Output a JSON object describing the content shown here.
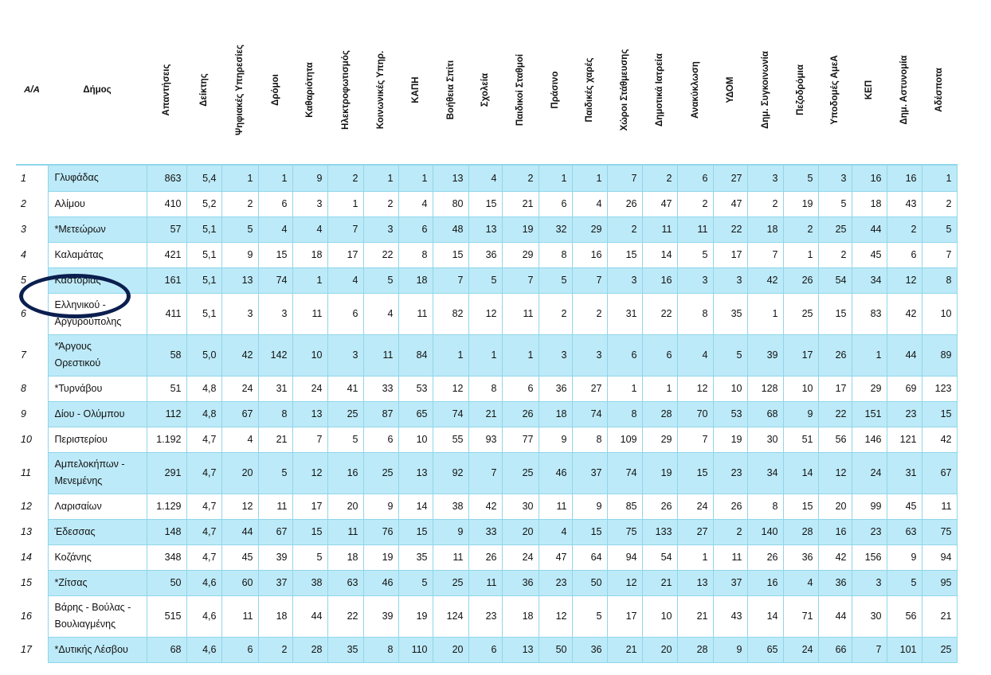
{
  "columns": [
    "Α/Α",
    "Δήμος",
    "Απαντήσεις",
    "Δείκτης",
    "Ψηφιακές Υπηρεσίες",
    "Δρόμοι",
    "Καθαριότητα",
    "Ηλεκτροφωτισμός",
    "Κοινωνικές Υπηρ.",
    "ΚΑΠΗ",
    "Βοήθεια Σπίτι",
    "Σχολεία",
    "Παιδικοί Σταθμοί",
    "Πράσινο",
    "Παιδικές χαρές",
    "Χώροι Στάθμευσης",
    "Δημοτικά Ιατρεία",
    "Ανακύκλωση",
    "ΥΔΟΜ",
    "Δημ. Συγκοινωνία",
    "Πεζοδρόμια",
    "Υποδομές ΑμεΑ",
    "ΚΕΠ",
    "Δημ. Αστυνομία",
    "Αδέσποτα"
  ],
  "rows": [
    {
      "aa": "1",
      "muni": [
        "Γλυφάδας"
      ],
      "vals": [
        "863",
        "5,4",
        "1",
        "1",
        "9",
        "2",
        "1",
        "1",
        "13",
        "4",
        "2",
        "1",
        "1",
        "7",
        "2",
        "6",
        "27",
        "3",
        "5",
        "3",
        "16",
        "16",
        "1"
      ]
    },
    {
      "aa": "2",
      "muni": [
        "Αλίμου"
      ],
      "vals": [
        "410",
        "5,2",
        "2",
        "6",
        "3",
        "1",
        "2",
        "4",
        "80",
        "15",
        "21",
        "6",
        "4",
        "26",
        "47",
        "2",
        "47",
        "2",
        "19",
        "5",
        "18",
        "43",
        "2"
      ]
    },
    {
      "aa": "3",
      "muni": [
        "*Μετεώρων"
      ],
      "vals": [
        "57",
        "5,1",
        "5",
        "4",
        "4",
        "7",
        "3",
        "6",
        "48",
        "13",
        "19",
        "32",
        "29",
        "2",
        "11",
        "11",
        "22",
        "18",
        "2",
        "25",
        "44",
        "2",
        "5"
      ]
    },
    {
      "aa": "4",
      "muni": [
        "Καλαμάτας"
      ],
      "vals": [
        "421",
        "5,1",
        "9",
        "15",
        "18",
        "17",
        "22",
        "8",
        "15",
        "36",
        "29",
        "8",
        "16",
        "15",
        "14",
        "5",
        "17",
        "7",
        "1",
        "2",
        "45",
        "6",
        "7"
      ]
    },
    {
      "aa": "5",
      "muni": [
        "Καστοριάς"
      ],
      "vals": [
        "161",
        "5,1",
        "13",
        "74",
        "1",
        "4",
        "5",
        "18",
        "7",
        "5",
        "7",
        "5",
        "7",
        "3",
        "16",
        "3",
        "3",
        "42",
        "26",
        "54",
        "34",
        "12",
        "8"
      ]
    },
    {
      "aa": "6",
      "muni": [
        "Ελληνικού -",
        "Αργυρούπολης"
      ],
      "vals": [
        "411",
        "5,1",
        "3",
        "3",
        "11",
        "6",
        "4",
        "11",
        "82",
        "12",
        "11",
        "2",
        "2",
        "31",
        "22",
        "8",
        "35",
        "1",
        "25",
        "15",
        "83",
        "42",
        "10"
      ]
    },
    {
      "aa": "7",
      "muni": [
        "*Άργους",
        "Ορεστικού"
      ],
      "vals": [
        "58",
        "5,0",
        "42",
        "142",
        "10",
        "3",
        "11",
        "84",
        "1",
        "1",
        "1",
        "3",
        "3",
        "6",
        "6",
        "4",
        "5",
        "39",
        "17",
        "26",
        "1",
        "44",
        "89"
      ]
    },
    {
      "aa": "8",
      "muni": [
        "*Τυρνάβου"
      ],
      "vals": [
        "51",
        "4,8",
        "24",
        "31",
        "24",
        "41",
        "33",
        "53",
        "12",
        "8",
        "6",
        "36",
        "27",
        "1",
        "1",
        "12",
        "10",
        "128",
        "10",
        "17",
        "29",
        "69",
        "123"
      ]
    },
    {
      "aa": "9",
      "muni": [
        "Δίου - Ολύμπου"
      ],
      "vals": [
        "112",
        "4,8",
        "67",
        "8",
        "13",
        "25",
        "87",
        "65",
        "74",
        "21",
        "26",
        "18",
        "74",
        "8",
        "28",
        "70",
        "53",
        "68",
        "9",
        "22",
        "151",
        "23",
        "15"
      ]
    },
    {
      "aa": "10",
      "muni": [
        "Περιστερίου"
      ],
      "vals": [
        "1.192",
        "4,7",
        "4",
        "21",
        "7",
        "5",
        "6",
        "10",
        "55",
        "93",
        "77",
        "9",
        "8",
        "109",
        "29",
        "7",
        "19",
        "30",
        "51",
        "56",
        "146",
        "121",
        "42"
      ]
    },
    {
      "aa": "11",
      "muni": [
        "Αμπελοκήπων -",
        "Μενεμένης"
      ],
      "vals": [
        "291",
        "4,7",
        "20",
        "5",
        "12",
        "16",
        "25",
        "13",
        "92",
        "7",
        "25",
        "46",
        "37",
        "74",
        "19",
        "15",
        "23",
        "34",
        "14",
        "12",
        "24",
        "31",
        "67"
      ]
    },
    {
      "aa": "12",
      "muni": [
        "Λαρισαίων"
      ],
      "vals": [
        "1.129",
        "4,7",
        "12",
        "11",
        "17",
        "20",
        "9",
        "14",
        "38",
        "42",
        "30",
        "11",
        "9",
        "85",
        "26",
        "24",
        "26",
        "8",
        "15",
        "20",
        "99",
        "45",
        "11"
      ]
    },
    {
      "aa": "13",
      "muni": [
        "Έδεσσας"
      ],
      "vals": [
        "148",
        "4,7",
        "44",
        "67",
        "15",
        "11",
        "76",
        "15",
        "9",
        "33",
        "20",
        "4",
        "15",
        "75",
        "133",
        "27",
        "2",
        "140",
        "28",
        "16",
        "23",
        "63",
        "75"
      ]
    },
    {
      "aa": "14",
      "muni": [
        "Κοζάνης"
      ],
      "vals": [
        "348",
        "4,7",
        "45",
        "39",
        "5",
        "18",
        "19",
        "35",
        "11",
        "26",
        "24",
        "47",
        "64",
        "94",
        "54",
        "1",
        "11",
        "26",
        "36",
        "42",
        "156",
        "9",
        "94"
      ]
    },
    {
      "aa": "15",
      "muni": [
        "*Ζίτσας"
      ],
      "vals": [
        "50",
        "4,6",
        "60",
        "37",
        "38",
        "63",
        "46",
        "5",
        "25",
        "11",
        "36",
        "23",
        "50",
        "12",
        "21",
        "13",
        "37",
        "16",
        "4",
        "36",
        "3",
        "5",
        "95"
      ]
    },
    {
      "aa": "16",
      "muni": [
        "Βάρης - Βούλας -",
        "Βουλιαγμένης"
      ],
      "vals": [
        "515",
        "4,6",
        "11",
        "18",
        "44",
        "22",
        "39",
        "19",
        "124",
        "23",
        "18",
        "12",
        "5",
        "17",
        "10",
        "21",
        "43",
        "14",
        "71",
        "44",
        "30",
        "56",
        "21"
      ]
    },
    {
      "aa": "17",
      "muni": [
        "*Δυτικής Λέσβου"
      ],
      "vals": [
        "68",
        "4,6",
        "6",
        "2",
        "28",
        "35",
        "8",
        "110",
        "20",
        "6",
        "13",
        "50",
        "36",
        "21",
        "20",
        "28",
        "9",
        "65",
        "24",
        "66",
        "7",
        "101",
        "25"
      ]
    }
  ]
}
